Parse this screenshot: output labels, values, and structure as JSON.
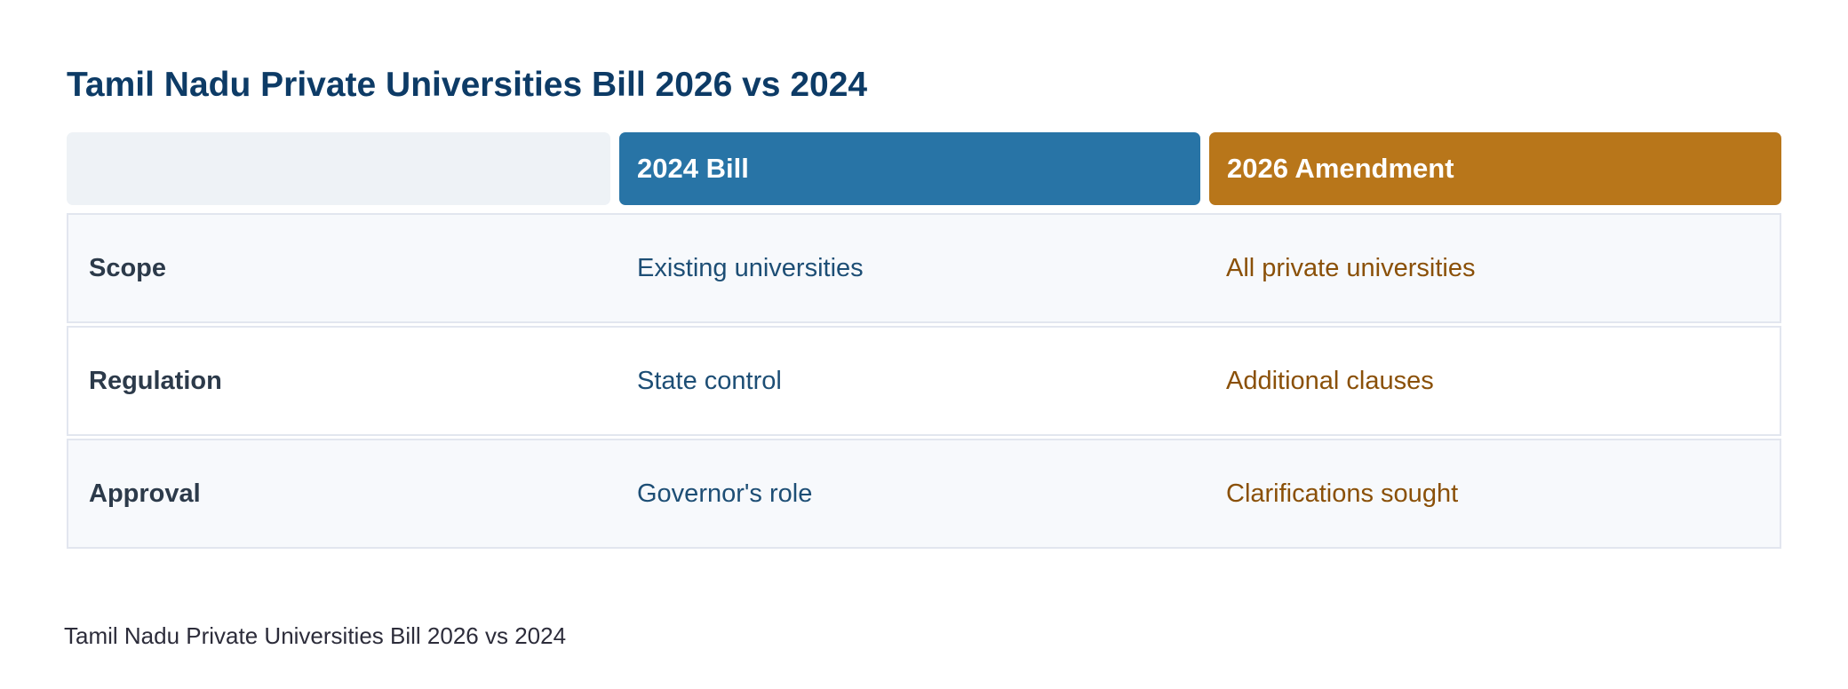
{
  "title": "Tamil Nadu Private Universities Bill 2026 vs 2024",
  "columns": [
    {
      "label": "2024 Bill",
      "color": "#2874a6"
    },
    {
      "label": "2026 Amendment",
      "color": "#b8761a"
    }
  ],
  "rows": [
    {
      "label": "Scope",
      "v2024": "Existing universities",
      "v2026": "All private universities"
    },
    {
      "label": "Regulation",
      "v2024": "State control",
      "v2026": "Additional clauses"
    },
    {
      "label": "Approval",
      "v2024": "Governor's role",
      "v2026": "Clarifications sought"
    }
  ],
  "footer": "Tamil Nadu Private Universities Bill 2026 vs 2024"
}
